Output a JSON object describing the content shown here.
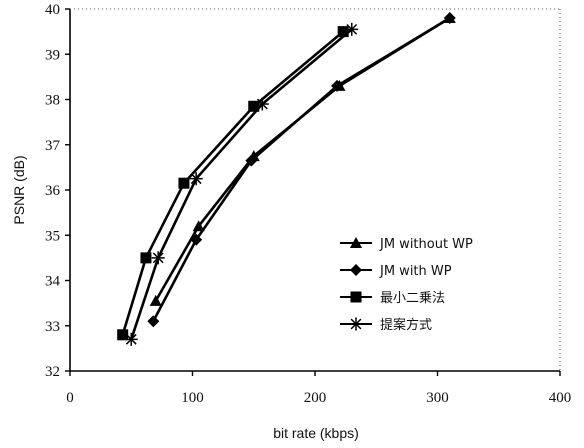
{
  "chart_data": {
    "type": "line",
    "xlabel": "bit rate (kbps)",
    "ylabel": "PSNR (dB)",
    "xlim": [
      0,
      400
    ],
    "ylim": [
      32,
      40
    ],
    "x_ticks": [
      0,
      100,
      200,
      300,
      400
    ],
    "y_ticks": [
      32,
      33,
      34,
      35,
      36,
      37,
      38,
      39,
      40
    ],
    "grid": "dotted top and right border only",
    "legend_position": "lower-right",
    "series": [
      {
        "name": "JM without WP",
        "marker": "triangle",
        "x": [
          70,
          105,
          150,
          220,
          310
        ],
        "y": [
          33.55,
          35.2,
          36.75,
          38.3,
          39.8
        ]
      },
      {
        "name": "JM with WP",
        "marker": "diamond",
        "x": [
          68,
          103,
          148,
          218,
          310
        ],
        "y": [
          33.1,
          34.9,
          36.65,
          38.3,
          39.8
        ]
      },
      {
        "name": "最小二乗法",
        "marker": "square",
        "x": [
          43,
          62,
          93,
          150,
          223
        ],
        "y": [
          32.8,
          34.5,
          36.15,
          37.85,
          39.5
        ]
      },
      {
        "name": "提案方式",
        "marker": "star",
        "x": [
          50,
          72,
          103,
          157,
          230
        ],
        "y": [
          32.7,
          34.5,
          36.25,
          37.9,
          39.55
        ]
      }
    ]
  }
}
